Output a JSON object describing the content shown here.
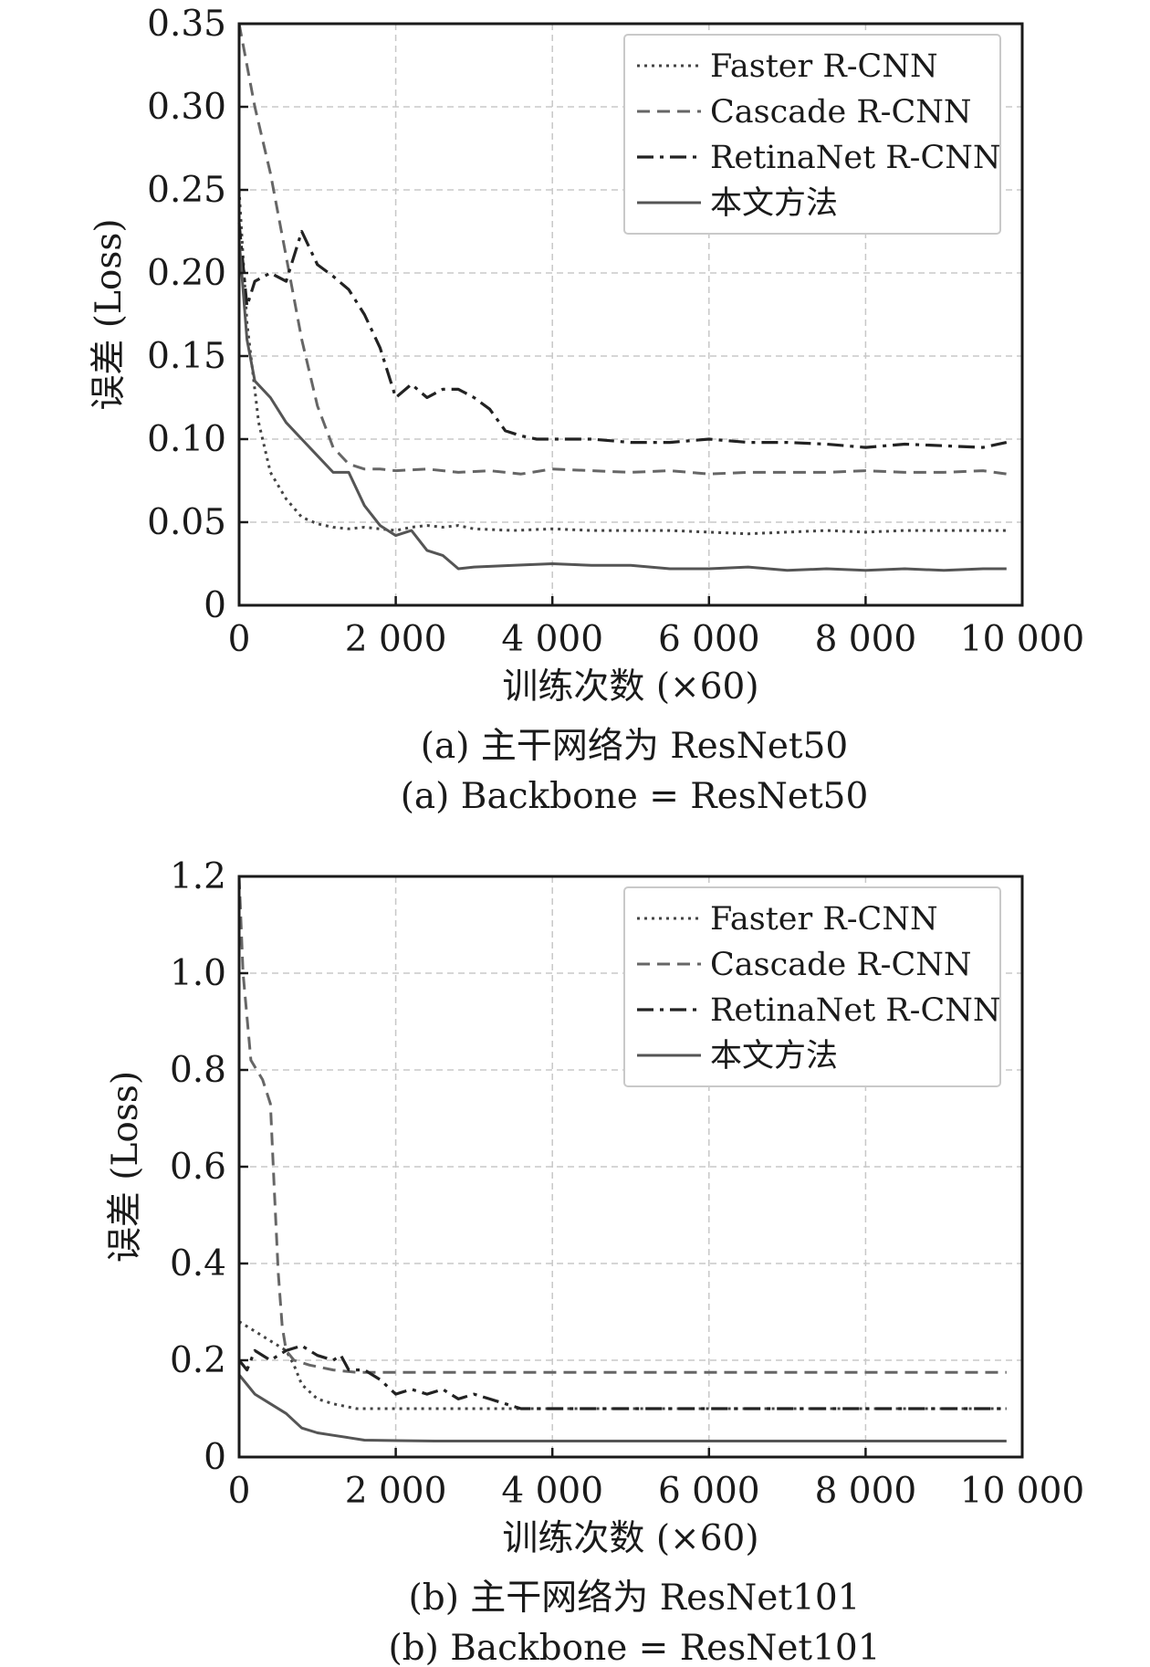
{
  "chart_data": [
    {
      "type": "line",
      "caption_cn": "(a) 主干网络为 ResNet50",
      "caption_en": "(a) Backbone = ResNet50",
      "xlabel": "训练次数 (×60)",
      "ylabel": "误差 (Loss)",
      "xlim": [
        0,
        10000
      ],
      "ylim": [
        0,
        0.35
      ],
      "x_ticks": [
        "0",
        "2 000",
        "4 000",
        "6 000",
        "8 000",
        "10 000"
      ],
      "y_ticks": [
        "0",
        "0.05",
        "0.10",
        "0.15",
        "0.20",
        "0.25",
        "0.30",
        "0.35"
      ],
      "grid": true,
      "legend_position": "top-right",
      "series": [
        {
          "name": "Faster R-CNN",
          "style": "dotted",
          "color": "#444444",
          "x": [
            0,
            100,
            250,
            400,
            600,
            800,
            1000,
            1200,
            1400,
            1600,
            1800,
            2000,
            2200,
            2400,
            2600,
            2800,
            3000,
            3500,
            4000,
            4500,
            5000,
            5500,
            6000,
            6500,
            7000,
            7500,
            8000,
            8500,
            9000,
            9500,
            9800
          ],
          "y": [
            0.25,
            0.17,
            0.11,
            0.08,
            0.064,
            0.053,
            0.049,
            0.047,
            0.046,
            0.047,
            0.046,
            0.045,
            0.047,
            0.048,
            0.047,
            0.048,
            0.046,
            0.045,
            0.046,
            0.045,
            0.045,
            0.045,
            0.044,
            0.043,
            0.044,
            0.045,
            0.044,
            0.045,
            0.045,
            0.045,
            0.045
          ]
        },
        {
          "name": "Cascade R-CNN",
          "style": "dashed",
          "color": "#666666",
          "x": [
            0,
            200,
            400,
            600,
            800,
            1000,
            1200,
            1400,
            1600,
            1800,
            2000,
            2400,
            2800,
            3200,
            3600,
            4000,
            4500,
            5000,
            5500,
            6000,
            6500,
            7000,
            7500,
            8000,
            8500,
            9000,
            9500,
            9800
          ],
          "y": [
            0.35,
            0.3,
            0.26,
            0.21,
            0.16,
            0.12,
            0.095,
            0.085,
            0.082,
            0.082,
            0.081,
            0.082,
            0.08,
            0.081,
            0.079,
            0.082,
            0.081,
            0.08,
            0.081,
            0.079,
            0.08,
            0.08,
            0.08,
            0.081,
            0.08,
            0.08,
            0.081,
            0.079
          ]
        },
        {
          "name": "RetinaNet R-CNN",
          "style": "dash-dot",
          "color": "#222222",
          "x": [
            0,
            100,
            200,
            400,
            600,
            800,
            900,
            1000,
            1200,
            1400,
            1600,
            1800,
            2000,
            2200,
            2400,
            2600,
            2800,
            3000,
            3200,
            3400,
            3600,
            3800,
            4000,
            4500,
            5000,
            5500,
            6000,
            6500,
            7000,
            7500,
            8000,
            8500,
            9000,
            9500,
            9800
          ],
          "y": [
            0.23,
            0.18,
            0.195,
            0.2,
            0.195,
            0.225,
            0.215,
            0.205,
            0.198,
            0.19,
            0.175,
            0.155,
            0.125,
            0.133,
            0.125,
            0.13,
            0.13,
            0.125,
            0.118,
            0.105,
            0.102,
            0.1,
            0.1,
            0.1,
            0.098,
            0.098,
            0.1,
            0.098,
            0.098,
            0.097,
            0.095,
            0.097,
            0.096,
            0.095,
            0.098
          ]
        },
        {
          "name": "本文方法",
          "style": "solid",
          "color": "#555555",
          "x": [
            0,
            100,
            200,
            400,
            600,
            800,
            1000,
            1200,
            1400,
            1600,
            1800,
            2000,
            2200,
            2400,
            2600,
            2800,
            3000,
            3500,
            4000,
            4500,
            5000,
            5500,
            6000,
            6500,
            7000,
            7500,
            8000,
            8500,
            9000,
            9500,
            9800
          ],
          "y": [
            0.22,
            0.16,
            0.135,
            0.125,
            0.11,
            0.1,
            0.09,
            0.08,
            0.08,
            0.06,
            0.048,
            0.042,
            0.045,
            0.033,
            0.03,
            0.022,
            0.023,
            0.024,
            0.025,
            0.024,
            0.024,
            0.022,
            0.022,
            0.023,
            0.021,
            0.022,
            0.021,
            0.022,
            0.021,
            0.022,
            0.022
          ]
        }
      ]
    },
    {
      "type": "line",
      "caption_cn": "(b) 主干网络为 ResNet101",
      "caption_en": "(b) Backbone = ResNet101",
      "xlabel": "训练次数 (×60)",
      "ylabel": "误差 (Loss)",
      "xlim": [
        0,
        10000
      ],
      "ylim": [
        0,
        1.2
      ],
      "x_ticks": [
        "0",
        "2 000",
        "4 000",
        "6 000",
        "8 000",
        "10 000"
      ],
      "y_ticks": [
        "0",
        "0.2",
        "0.4",
        "0.6",
        "0.8",
        "1.0",
        "1.2"
      ],
      "grid": true,
      "legend_position": "top-right",
      "series": [
        {
          "name": "Faster R-CNN",
          "style": "dotted",
          "color": "#444444",
          "x": [
            0,
            200,
            400,
            600,
            700,
            800,
            1000,
            1200,
            1500,
            2000,
            2500,
            3000,
            4000,
            5000,
            6000,
            7000,
            8000,
            9000,
            9800
          ],
          "y": [
            0.28,
            0.26,
            0.24,
            0.22,
            0.19,
            0.15,
            0.12,
            0.11,
            0.1,
            0.1,
            0.1,
            0.1,
            0.1,
            0.1,
            0.1,
            0.1,
            0.1,
            0.1,
            0.1
          ]
        },
        {
          "name": "Cascade R-CNN",
          "style": "dashed",
          "color": "#666666",
          "x": [
            0,
            50,
            150,
            300,
            400,
            450,
            500,
            550,
            600,
            700,
            900,
            1200,
            1500,
            2000,
            3000,
            4000,
            5000,
            6000,
            7000,
            8000,
            9000,
            9800
          ],
          "y": [
            1.2,
            1.0,
            0.82,
            0.78,
            0.73,
            0.55,
            0.38,
            0.27,
            0.22,
            0.2,
            0.19,
            0.18,
            0.175,
            0.175,
            0.175,
            0.175,
            0.175,
            0.175,
            0.175,
            0.175,
            0.175,
            0.175
          ]
        },
        {
          "name": "RetinaNet R-CNN",
          "style": "dash-dot",
          "color": "#222222",
          "x": [
            0,
            100,
            200,
            400,
            600,
            800,
            1000,
            1200,
            1300,
            1400,
            1600,
            1800,
            2000,
            2200,
            2400,
            2600,
            2800,
            3000,
            3200,
            3400,
            3600,
            4000,
            5000,
            6000,
            7000,
            8000,
            9000,
            9800
          ],
          "y": [
            0.2,
            0.18,
            0.22,
            0.2,
            0.22,
            0.23,
            0.21,
            0.2,
            0.21,
            0.18,
            0.18,
            0.16,
            0.13,
            0.14,
            0.13,
            0.14,
            0.12,
            0.13,
            0.12,
            0.11,
            0.1,
            0.1,
            0.1,
            0.1,
            0.1,
            0.1,
            0.1,
            0.1
          ]
        },
        {
          "name": "本文方法",
          "style": "solid",
          "color": "#555555",
          "x": [
            0,
            100,
            200,
            400,
            600,
            800,
            1000,
            1200,
            1400,
            1600,
            2000,
            2500,
            3000,
            4000,
            5000,
            6000,
            7000,
            8000,
            9000,
            9800
          ],
          "y": [
            0.17,
            0.15,
            0.13,
            0.11,
            0.09,
            0.06,
            0.05,
            0.045,
            0.04,
            0.035,
            0.034,
            0.033,
            0.033,
            0.033,
            0.033,
            0.033,
            0.033,
            0.033,
            0.033,
            0.033
          ]
        }
      ]
    }
  ]
}
